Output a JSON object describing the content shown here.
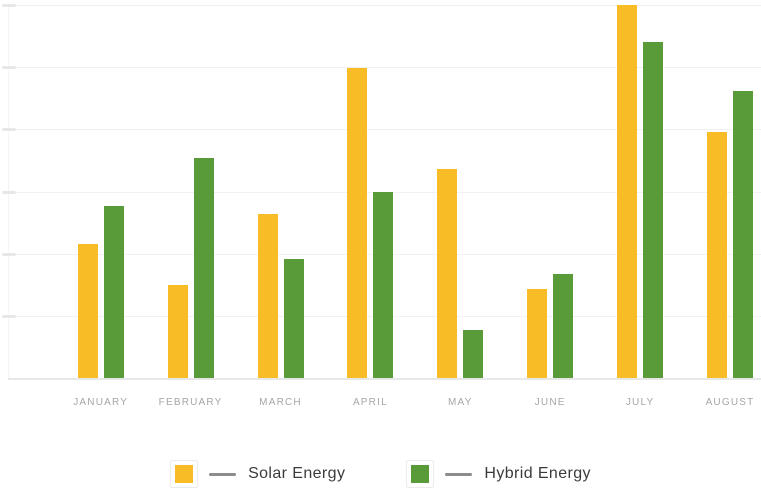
{
  "chart_data": {
    "type": "bar",
    "title": "",
    "xlabel": "",
    "ylabel": "",
    "categories": [
      "JANUARY",
      "FEBRUARY",
      "MARCH",
      "APRIL",
      "MAY",
      "JUNE",
      "JULY",
      "AUGUST"
    ],
    "series": [
      {
        "name": "Solar Energy",
        "color": "#f7bc26",
        "values": [
          36,
          25,
          44,
          83,
          56,
          24,
          100,
          66
        ]
      },
      {
        "name": "Hybrid Energy",
        "color": "#5a9b39",
        "values": [
          46,
          59,
          32,
          50,
          13,
          28,
          90,
          77
        ]
      }
    ],
    "ylim": [
      0,
      100
    ],
    "y_gridline_count": 6,
    "y_axis_labels": "hidden",
    "grid": "horizontal",
    "legend_position": "bottom"
  },
  "legend": {
    "items": [
      {
        "label": "Solar Energy",
        "swatch_color": "#f7bc26"
      },
      {
        "label": "Hybrid Energy",
        "swatch_color": "#5a9b39"
      }
    ]
  },
  "colors": {
    "background": "#ffffff",
    "gridline": "#f1f1f1",
    "axis_line": "#e7e7e7",
    "tick": "#e7e7e7",
    "month_label": "#a6a6a6",
    "legend_text": "#3b3b3b",
    "legend_dash": "#8c8c8c"
  }
}
